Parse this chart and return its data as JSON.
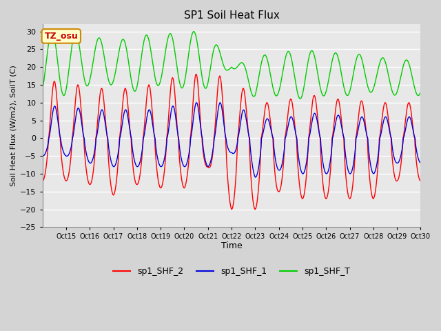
{
  "title": "SP1 Soil Heat Flux",
  "xlabel": "Time",
  "ylabel": "Soil Heat Flux (W/m2), SoilT (C)",
  "ylim": [
    -25,
    32
  ],
  "yticks": [
    -25,
    -20,
    -15,
    -10,
    -5,
    0,
    5,
    10,
    15,
    20,
    25,
    30
  ],
  "xtick_labels": [
    "Oct 15",
    "Oct 16",
    "Oct 17",
    "Oct 18",
    "Oct 19",
    "Oct 20",
    "Oct 21",
    "Oct 22",
    "Oct 23",
    "Oct 24",
    "Oct 25",
    "Oct 26",
    "Oct 27",
    "Oct 28",
    "Oct 29",
    "Oct 30"
  ],
  "fig_bg_color": "#d4d4d4",
  "plot_bg_color": "#e8e8e8",
  "grid_color": "#ffffff",
  "annotation_text": "TZ_osu",
  "annotation_bg": "#ffffcc",
  "annotation_border": "#cc8800",
  "legend_entries": [
    "sp1_SHF_2",
    "sp1_SHF_1",
    "sp1_SHF_T"
  ],
  "line_colors": {
    "SHF2": "#ff0000",
    "SHF1": "#0000dd",
    "SHFT": "#00cc00"
  }
}
